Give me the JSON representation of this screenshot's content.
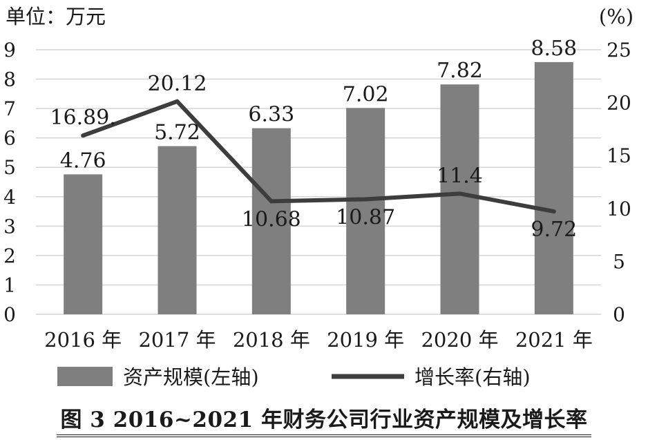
{
  "caption": "图 3  2016~2021 年财务公司行业资产规模及增长率",
  "left_unit_label": "单位：万元",
  "right_unit_label": "(%)",
  "colors": {
    "bar": "#7f7f7f",
    "line": "#3d3d3d",
    "grid": "#d4d4d4",
    "text": "#1a1a1a"
  },
  "chart_data": {
    "type": "bar",
    "categories": [
      "2016 年",
      "2017 年",
      "2018 年",
      "2019 年",
      "2020 年",
      "2021 年"
    ],
    "series": [
      {
        "name": "资产规模(左轴)",
        "type": "bar",
        "axis": "left",
        "values": [
          4.76,
          5.72,
          6.33,
          7.02,
          7.82,
          8.58
        ],
        "labels": [
          "4.76",
          "5.72",
          "6.33",
          "7.02",
          "7.82",
          "8.58"
        ]
      },
      {
        "name": "增长率(右轴)",
        "type": "line",
        "axis": "right",
        "values": [
          16.89,
          20.12,
          10.68,
          10.87,
          11.4,
          9.72
        ],
        "labels": [
          "16.89.",
          "20.12",
          "10.68",
          "10.87",
          "11.4",
          "9.72"
        ]
      }
    ],
    "y_left": {
      "min": 0,
      "max": 9,
      "ticks": [
        0,
        1,
        2,
        3,
        4,
        5,
        6,
        7,
        8,
        9
      ]
    },
    "y_right": {
      "min": 0,
      "max": 25,
      "ticks": [
        0,
        5,
        10,
        15,
        20,
        25
      ]
    },
    "grid": true,
    "legend_position": "bottom"
  }
}
